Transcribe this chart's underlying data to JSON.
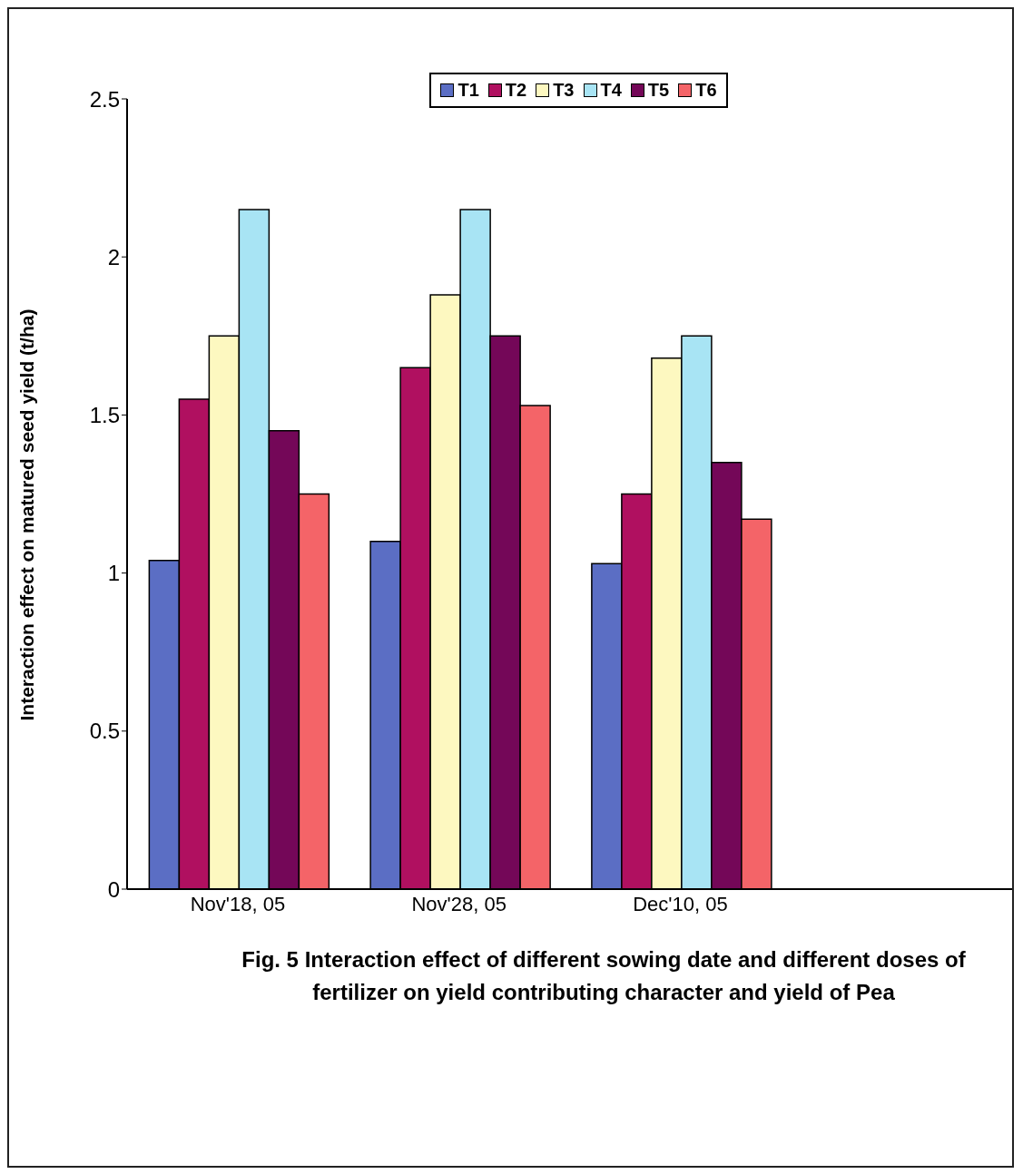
{
  "chart_data": {
    "type": "bar",
    "categories": [
      "Nov'18, 05",
      "Nov'28, 05",
      "Dec'10, 05",
      null
    ],
    "series": [
      {
        "name": "T1",
        "color": "#5b6ec4",
        "values": [
          1.04,
          1.1,
          1.03,
          null
        ]
      },
      {
        "name": "T2",
        "color": "#b01060",
        "values": [
          1.55,
          1.65,
          1.25,
          null
        ]
      },
      {
        "name": "T3",
        "color": "#fdf8c0",
        "values": [
          1.75,
          1.88,
          1.68,
          null
        ]
      },
      {
        "name": "T4",
        "color": "#a8e4f4",
        "values": [
          2.15,
          2.15,
          1.75,
          null
        ]
      },
      {
        "name": "T5",
        "color": "#740758",
        "values": [
          1.45,
          1.75,
          1.35,
          null
        ]
      },
      {
        "name": "T6",
        "color": "#f46468",
        "values": [
          1.25,
          1.53,
          1.17,
          null
        ]
      }
    ],
    "ylabel": "Interaction effect on matured seed yield (t/ha)",
    "ylim": [
      0,
      2.5
    ],
    "yticks": [
      0,
      0.5,
      1,
      1.5,
      2,
      2.5
    ],
    "grid": false,
    "legend": "top",
    "annotations": [
      "Fig. 5 Interaction effect of different sowing date and different doses of fertilizer on yield contributing character and yield of Pea"
    ]
  }
}
